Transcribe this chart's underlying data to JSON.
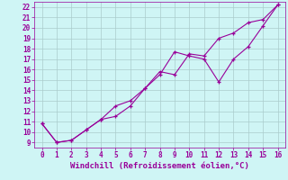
{
  "xlabel": "Windchill (Refroidissement éolien,°C)",
  "bg_color": "#cff5f5",
  "grid_color": "#aacccc",
  "line_color": "#990099",
  "xlim": [
    -0.5,
    16.5
  ],
  "ylim": [
    8.5,
    22.5
  ],
  "xticks": [
    0,
    1,
    2,
    3,
    4,
    5,
    6,
    7,
    8,
    9,
    10,
    11,
    12,
    13,
    14,
    15,
    16
  ],
  "yticks": [
    9,
    10,
    11,
    12,
    13,
    14,
    15,
    16,
    17,
    18,
    19,
    20,
    21,
    22
  ],
  "line1_x": [
    0,
    1,
    2,
    3,
    4,
    5,
    6,
    7,
    8,
    9,
    10,
    11,
    12,
    13,
    14,
    15,
    16
  ],
  "line1_y": [
    10.8,
    9.0,
    9.2,
    10.2,
    11.2,
    11.5,
    12.5,
    14.2,
    15.5,
    17.7,
    17.3,
    17.0,
    14.8,
    17.0,
    18.2,
    20.2,
    22.2
  ],
  "line2_x": [
    0,
    1,
    2,
    3,
    4,
    5,
    6,
    7,
    8,
    9,
    10,
    11,
    12,
    13,
    14,
    15,
    16
  ],
  "line2_y": [
    10.8,
    9.0,
    9.2,
    10.2,
    11.2,
    12.5,
    13.0,
    14.2,
    15.8,
    15.5,
    17.5,
    17.3,
    19.0,
    19.5,
    20.5,
    20.8,
    22.2
  ],
  "font_color": "#990099",
  "tick_fontsize": 5.5,
  "label_fontsize": 6.5
}
